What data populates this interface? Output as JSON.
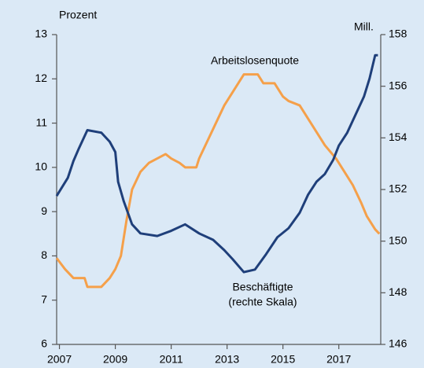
{
  "chart_data": {
    "type": "line",
    "y_label": "Prozent",
    "y2_label": "Mill.",
    "annotation": "(rechte Skala)",
    "xlim": [
      2006.9,
      2018.5
    ],
    "xticks": [
      2007,
      2009,
      2011,
      2013,
      2015,
      2017
    ],
    "ylim": [
      6,
      13
    ],
    "yticks": [
      6,
      7,
      8,
      9,
      10,
      11,
      12,
      13
    ],
    "y2lim": [
      146,
      158
    ],
    "y2ticks": [
      146,
      148,
      150,
      152,
      154,
      156,
      158
    ],
    "series": [
      {
        "name": "Arbeitslosenquote",
        "color": "#f5a04a",
        "axis": "y",
        "x": [
          2006.9,
          2007.2,
          2007.5,
          2007.9,
          2008.0,
          2008.5,
          2008.8,
          2009.0,
          2009.2,
          2009.4,
          2009.6,
          2009.9,
          2010.2,
          2010.5,
          2010.8,
          2011.0,
          2011.3,
          2011.5,
          2011.9,
          2012.0,
          2012.3,
          2012.6,
          2012.9,
          2013.1,
          2013.4,
          2013.6,
          2014.1,
          2014.3,
          2014.7,
          2015.0,
          2015.2,
          2015.6,
          2015.9,
          2016.2,
          2016.5,
          2016.9,
          2017.2,
          2017.5,
          2017.8,
          2018.0,
          2018.3,
          2018.45
        ],
        "values": [
          7.95,
          7.7,
          7.5,
          7.5,
          7.3,
          7.3,
          7.5,
          7.7,
          8.0,
          8.8,
          9.5,
          9.9,
          10.1,
          10.2,
          10.3,
          10.2,
          10.1,
          10.0,
          10.0,
          10.2,
          10.6,
          11.0,
          11.4,
          11.6,
          11.9,
          12.1,
          12.1,
          11.9,
          11.9,
          11.6,
          11.5,
          11.4,
          11.1,
          10.8,
          10.5,
          10.2,
          9.9,
          9.6,
          9.2,
          8.9,
          8.6,
          8.5
        ]
      },
      {
        "name": "Beschäftigte",
        "color": "#1f3f7a",
        "axis": "y2",
        "x": [
          2006.9,
          2007.3,
          2007.5,
          2007.7,
          2008.0,
          2008.5,
          2008.8,
          2009.0,
          2009.1,
          2009.3,
          2009.6,
          2009.9,
          2010.5,
          2011.0,
          2011.5,
          2012.0,
          2012.5,
          2012.9,
          2013.2,
          2013.6,
          2014.0,
          2014.4,
          2014.8,
          2015.2,
          2015.6,
          2015.9,
          2016.2,
          2016.5,
          2016.8,
          2017.0,
          2017.3,
          2017.6,
          2017.9,
          2018.1,
          2018.3,
          2018.4
        ],
        "values": [
          151.75,
          152.45,
          153.1,
          153.6,
          154.3,
          154.2,
          153.85,
          153.45,
          152.3,
          151.55,
          150.65,
          150.3,
          150.2,
          150.4,
          150.65,
          150.3,
          150.05,
          149.65,
          149.3,
          148.8,
          148.9,
          149.5,
          150.15,
          150.5,
          151.1,
          151.8,
          152.3,
          152.6,
          153.15,
          153.7,
          154.2,
          154.9,
          155.6,
          156.3,
          157.2,
          157.2
        ]
      }
    ]
  }
}
